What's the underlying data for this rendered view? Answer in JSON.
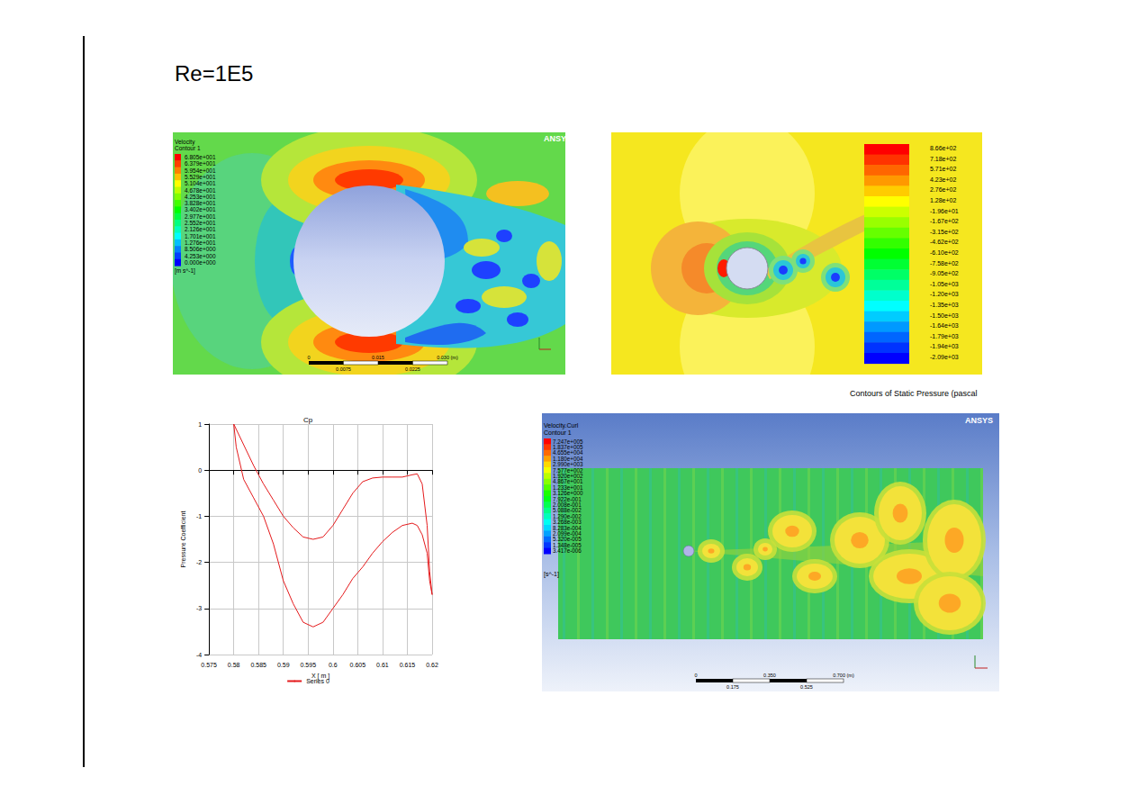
{
  "title": "Re=1E5",
  "velocity_contour": {
    "title": "Velocity",
    "subtitle": "Contour 1",
    "unit": "[m s^-1]",
    "logo": "ANSYS",
    "levels": [
      "6.805e+001",
      "6.379e+001",
      "5.954e+001",
      "5.529e+001",
      "5.104e+001",
      "4.678e+001",
      "4.253e+001",
      "3.828e+001",
      "3.402e+001",
      "2.977e+001",
      "2.552e+001",
      "2.126e+001",
      "1.701e+001",
      "1.276e+001",
      "8.506e+000",
      "4.253e+000",
      "0.000e+000"
    ],
    "scale_bar": {
      "major": [
        "0",
        "0.015",
        "0.030 (m)"
      ],
      "minor": [
        "0.0075",
        "0.0225"
      ]
    }
  },
  "pressure_contour": {
    "caption": "Contours of Static Pressure (pascal",
    "levels": [
      "8.66e+02",
      "7.18e+02",
      "5.71e+02",
      "4.23e+02",
      "2.76e+02",
      "1.28e+02",
      "-1.96e+01",
      "-1.67e+02",
      "-3.15e+02",
      "-4.62e+02",
      "-6.10e+02",
      "-7.58e+02",
      "-9.05e+02",
      "-1.05e+03",
      "-1.20e+03",
      "-1.35e+03",
      "-1.50e+03",
      "-1.64e+03",
      "-1.79e+03",
      "-1.94e+03",
      "-2.09e+03"
    ]
  },
  "vorticity_contour": {
    "title": "Velocity.Curl",
    "subtitle": "Contour 1",
    "unit": "[s^-1]",
    "logo": "ANSYS",
    "levels": [
      "7.247e+005",
      "1.837e+005",
      "4.655e+004",
      "1.180e+004",
      "2.990e+003",
      "7.577e+002",
      "1.920e+002",
      "4.867e+001",
      "1.233e+001",
      "3.126e+000",
      "7.922e-001",
      "2.008e-001",
      "5.088e-002",
      "1.290e-002",
      "3.268e-003",
      "8.283e-004",
      "2.099e-004",
      "5.320e-005",
      "1.348e-005",
      "3.417e-006"
    ],
    "scale_bar": {
      "major": [
        "0",
        "0.350",
        "0.700 (m)"
      ],
      "minor": [
        "0.175",
        "0.525"
      ]
    }
  },
  "chart_data": {
    "type": "line",
    "title": "Cp",
    "x_label": "X [ m ]",
    "y_label": "Pressure Coefficient",
    "x": [
      0.58,
      0.582,
      0.584,
      0.586,
      0.588,
      0.59,
      0.592,
      0.594,
      0.596,
      0.598,
      0.6,
      0.602,
      0.604,
      0.606,
      0.608,
      0.61,
      0.612,
      0.614,
      0.616,
      0.617,
      0.618,
      0.619,
      0.6195,
      0.62,
      0.6195,
      0.619,
      0.618,
      0.617,
      0.616,
      0.614,
      0.612,
      0.61,
      0.608,
      0.606,
      0.604,
      0.602,
      0.6,
      0.598,
      0.596,
      0.594,
      0.592,
      0.59,
      0.588,
      0.586,
      0.584,
      0.582,
      0.5805,
      0.58
    ],
    "series": [
      {
        "name": "Series 0",
        "color": "#e41a1c",
        "values": [
          1,
          0.55,
          0.1,
          -0.3,
          -0.65,
          -1.0,
          -1.25,
          -1.45,
          -1.5,
          -1.45,
          -1.2,
          -0.85,
          -0.5,
          -0.25,
          -0.17,
          -0.15,
          -0.15,
          -0.15,
          -0.1,
          -0.08,
          -0.3,
          -1.2,
          -2.2,
          -2.7,
          -2.4,
          -1.8,
          -1.4,
          -1.2,
          -1.15,
          -1.2,
          -1.35,
          -1.55,
          -1.8,
          -2.1,
          -2.35,
          -2.7,
          -3.0,
          -3.3,
          -3.4,
          -3.3,
          -2.9,
          -2.4,
          -1.6,
          -1.0,
          -0.6,
          -0.2,
          0.5,
          1
        ]
      }
    ],
    "xlim": [
      0.575,
      0.62
    ],
    "xticks": [
      0.575,
      0.58,
      0.585,
      0.59,
      0.595,
      0.6,
      0.605,
      0.61,
      0.615,
      0.62
    ],
    "ylim": [
      -4,
      1
    ],
    "yticks": [
      -4,
      -3,
      -2,
      -1,
      0,
      1
    ],
    "grid": true,
    "legend": "bottom"
  }
}
